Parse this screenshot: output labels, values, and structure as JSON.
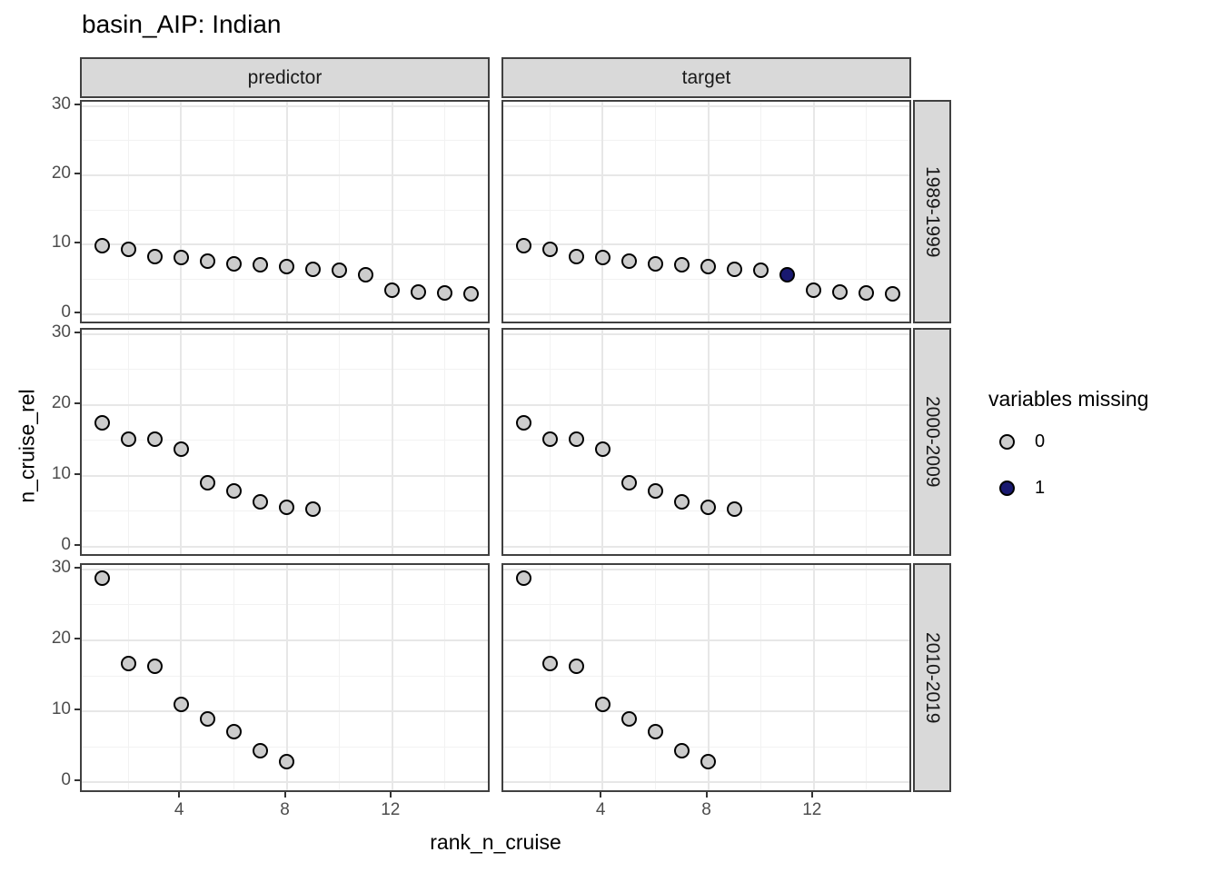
{
  "chart_data": {
    "type": "scatter",
    "title": "basin_AIP: Indian",
    "xlabel": "rank_n_cruise",
    "ylabel": "n_cruise_rel",
    "facet_cols": [
      "predictor",
      "target"
    ],
    "facet_rows": [
      "1989-1999",
      "2000-2009",
      "2010-2019"
    ],
    "x_ticks": [
      4,
      8,
      12
    ],
    "x_minor": [
      2,
      6,
      10,
      14
    ],
    "y_ticks": [
      0,
      10,
      20,
      30
    ],
    "y_minor": [
      5,
      15,
      25
    ],
    "xlim": [
      0.24,
      15.76
    ],
    "ylim": [
      0,
      30
    ],
    "grid": "on",
    "legend_position": "right",
    "legend": {
      "title": "variables missing",
      "items": [
        {
          "label": "0",
          "color": "#cccccc"
        },
        {
          "label": "1",
          "color": "#191970"
        }
      ]
    },
    "colors": {
      "strip_bg": "#d9d9d9",
      "panel_border": "#404040",
      "grid_major": "#e7e7e7",
      "grid_minor": "#f2f2f2",
      "tick_label": "#4d4d4d",
      "point_stroke": "#000000"
    },
    "panels": [
      {
        "facet_col": "predictor",
        "facet_row": "1989-1999",
        "x": [
          1,
          2,
          3,
          4,
          5,
          6,
          7,
          8,
          9,
          10,
          11,
          12,
          13,
          14,
          15
        ],
        "y": [
          9.9,
          9.3,
          8.3,
          8.2,
          7.6,
          7.3,
          7.1,
          6.9,
          6.5,
          6.3,
          5.6,
          3.5,
          3.2,
          3.0,
          2.9
        ],
        "missing": [
          0,
          0,
          0,
          0,
          0,
          0,
          0,
          0,
          0,
          0,
          0,
          0,
          0,
          0,
          0
        ]
      },
      {
        "facet_col": "target",
        "facet_row": "1989-1999",
        "x": [
          1,
          2,
          3,
          4,
          5,
          6,
          7,
          8,
          9,
          10,
          11,
          12,
          13,
          14,
          15
        ],
        "y": [
          9.9,
          9.3,
          8.3,
          8.2,
          7.6,
          7.3,
          7.1,
          6.9,
          6.5,
          6.3,
          5.6,
          3.5,
          3.2,
          3.0,
          2.9
        ],
        "missing": [
          0,
          0,
          0,
          0,
          0,
          0,
          0,
          0,
          0,
          0,
          1,
          0,
          0,
          0,
          0
        ]
      },
      {
        "facet_col": "predictor",
        "facet_row": "2000-2009",
        "x": [
          1,
          2,
          3,
          4,
          5,
          6,
          7,
          8,
          9
        ],
        "y": [
          17.4,
          15.1,
          15.1,
          13.7,
          9.0,
          7.8,
          6.3,
          5.5,
          5.3
        ],
        "missing": [
          0,
          0,
          0,
          0,
          0,
          0,
          0,
          0,
          0
        ]
      },
      {
        "facet_col": "target",
        "facet_row": "2000-2009",
        "x": [
          1,
          2,
          3,
          4,
          5,
          6,
          7,
          8,
          9
        ],
        "y": [
          17.4,
          15.1,
          15.1,
          13.7,
          9.0,
          7.8,
          6.3,
          5.5,
          5.3
        ],
        "missing": [
          0,
          0,
          0,
          0,
          0,
          0,
          0,
          0,
          0
        ]
      },
      {
        "facet_col": "predictor",
        "facet_row": "2010-2019",
        "x": [
          1,
          2,
          3,
          4,
          5,
          6,
          7,
          8
        ],
        "y": [
          28.7,
          16.7,
          16.3,
          11.0,
          9.0,
          7.2,
          4.5,
          2.9
        ],
        "missing": [
          0,
          0,
          0,
          0,
          0,
          0,
          0,
          0
        ]
      },
      {
        "facet_col": "target",
        "facet_row": "2010-2019",
        "x": [
          1,
          2,
          3,
          4,
          5,
          6,
          7,
          8
        ],
        "y": [
          28.7,
          16.7,
          16.3,
          11.0,
          9.0,
          7.2,
          4.5,
          2.9
        ],
        "missing": [
          0,
          0,
          0,
          0,
          0,
          0,
          0,
          0
        ]
      }
    ]
  }
}
